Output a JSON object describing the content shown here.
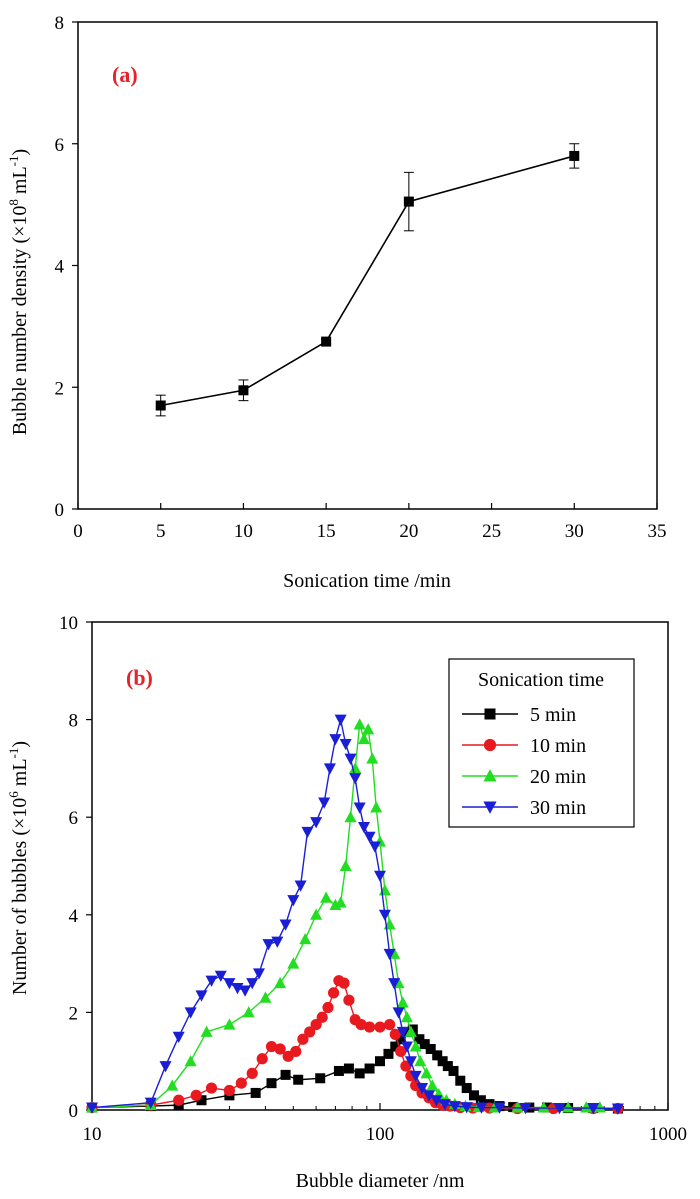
{
  "chart_data": [
    {
      "type": "line",
      "panel_label": "(a)",
      "panel_label_color": "#e8212a",
      "xlabel": "Sonication time  /min",
      "ylabel_main": "Bubble number density (×10",
      "ylabel_exp": "8",
      "ylabel_unit": " mL",
      "ylabel_unit_exp": "-1",
      "ylabel_close": ")",
      "xlim": [
        0,
        35
      ],
      "ylim": [
        0,
        8
      ],
      "xticks": [
        0,
        5,
        10,
        15,
        20,
        25,
        30,
        35
      ],
      "yticks": [
        0,
        2,
        4,
        6,
        8
      ],
      "series": [
        {
          "name": "Bubble number density",
          "color": "#000000",
          "marker": "square",
          "x": [
            5,
            10,
            15,
            20,
            30
          ],
          "y": [
            1.7,
            1.95,
            2.75,
            5.05,
            5.8
          ],
          "err": [
            0.17,
            0.17,
            0.04,
            0.48,
            0.2
          ]
        }
      ]
    },
    {
      "type": "line",
      "panel_label": "(b)",
      "panel_label_color": "#e8212a",
      "xscale": "log",
      "xlabel": "Bubble diameter /nm",
      "ylabel_main": "Number of bubbles (×10",
      "ylabel_exp": "6",
      "ylabel_unit": " mL",
      "ylabel_unit_exp": "-1",
      "ylabel_close": ")",
      "xlim": [
        10,
        1000
      ],
      "ylim": [
        0,
        10
      ],
      "xticks": [
        10,
        100,
        1000
      ],
      "yticks": [
        0,
        2,
        4,
        6,
        8,
        10
      ],
      "legend_title": "Sonication time",
      "legend_position": "top-right",
      "series": [
        {
          "name": "5 min",
          "color": "#000000",
          "marker": "square",
          "x": [
            10,
            16,
            20,
            24,
            30,
            37,
            42,
            47,
            52,
            62,
            72,
            78,
            85,
            92,
            100,
            107,
            113,
            118,
            124,
            130,
            137,
            143,
            150,
            158,
            165,
            172,
            180,
            190,
            200,
            212,
            224,
            240,
            260,
            290,
            330,
            380,
            450,
            550,
            670
          ],
          "y": [
            0.05,
            0.08,
            0.1,
            0.2,
            0.3,
            0.35,
            0.55,
            0.72,
            0.62,
            0.65,
            0.8,
            0.85,
            0.75,
            0.85,
            1.0,
            1.15,
            1.3,
            1.45,
            1.6,
            1.65,
            1.45,
            1.35,
            1.25,
            1.12,
            1.0,
            0.9,
            0.8,
            0.6,
            0.45,
            0.3,
            0.2,
            0.12,
            0.08,
            0.06,
            0.05,
            0.05,
            0.04,
            0.04,
            0.03
          ]
        },
        {
          "name": "10 min",
          "color": "#e8191f",
          "marker": "circle",
          "x": [
            10,
            16,
            20,
            23,
            26,
            30,
            33,
            36,
            39,
            42,
            45,
            48,
            51,
            54,
            57,
            60,
            63,
            66,
            69,
            72,
            75,
            78,
            82,
            86,
            92,
            100,
            108,
            113,
            118,
            123,
            128,
            133,
            140,
            148,
            156,
            165,
            175,
            190,
            210,
            240,
            300,
            400,
            550,
            670
          ],
          "y": [
            0.05,
            0.1,
            0.2,
            0.3,
            0.45,
            0.4,
            0.55,
            0.75,
            1.05,
            1.3,
            1.25,
            1.1,
            1.2,
            1.45,
            1.6,
            1.75,
            1.9,
            2.1,
            2.4,
            2.65,
            2.6,
            2.25,
            1.85,
            1.75,
            1.7,
            1.7,
            1.75,
            1.55,
            1.2,
            0.9,
            0.7,
            0.5,
            0.35,
            0.25,
            0.15,
            0.1,
            0.08,
            0.05,
            0.04,
            0.04,
            0.03,
            0.03,
            0.03,
            0.03
          ]
        },
        {
          "name": "20 min",
          "color": "#22dd22",
          "marker": "triangle-up",
          "x": [
            10,
            16,
            19,
            22,
            25,
            30,
            35,
            40,
            45,
            50,
            55,
            60,
            65,
            70,
            73,
            76,
            79,
            82,
            85,
            88,
            91,
            94,
            97,
            100,
            104,
            108,
            112,
            116,
            120,
            124,
            128,
            133,
            138,
            145,
            152,
            160,
            170,
            182,
            198,
            220,
            250,
            300,
            370,
            450,
            520,
            580
          ],
          "y": [
            0.05,
            0.1,
            0.5,
            1.0,
            1.6,
            1.75,
            2.0,
            2.3,
            2.6,
            3.0,
            3.5,
            4.0,
            4.35,
            4.2,
            4.25,
            5.0,
            6.0,
            7.0,
            7.9,
            7.6,
            7.8,
            7.2,
            6.2,
            5.5,
            4.5,
            3.8,
            3.2,
            2.6,
            2.2,
            1.9,
            1.6,
            1.3,
            1.0,
            0.75,
            0.5,
            0.32,
            0.2,
            0.12,
            0.08,
            0.06,
            0.05,
            0.05,
            0.05,
            0.05,
            0.05,
            0.05
          ]
        },
        {
          "name": "30 min",
          "color": "#1a1fd6",
          "marker": "triangle-down",
          "x": [
            10,
            16,
            18,
            20,
            22,
            24,
            26,
            28,
            30,
            32,
            34,
            36,
            38,
            41,
            44,
            47,
            50,
            53,
            56,
            60,
            64,
            67,
            70,
            73,
            76,
            79,
            82,
            85,
            88,
            92,
            96,
            100,
            104,
            108,
            112,
            116,
            120,
            124,
            128,
            133,
            140,
            148,
            157,
            168,
            182,
            200,
            225,
            260,
            320,
            420,
            550,
            670
          ],
          "y": [
            0.05,
            0.15,
            0.9,
            1.5,
            2.0,
            2.35,
            2.65,
            2.75,
            2.6,
            2.5,
            2.45,
            2.6,
            2.8,
            3.4,
            3.45,
            3.8,
            4.3,
            4.6,
            5.7,
            5.9,
            6.3,
            7.0,
            7.6,
            8.0,
            7.5,
            7.2,
            6.8,
            6.2,
            5.8,
            5.6,
            5.4,
            4.8,
            4.0,
            3.2,
            2.6,
            2.0,
            1.6,
            1.3,
            1.0,
            0.7,
            0.45,
            0.3,
            0.2,
            0.12,
            0.08,
            0.06,
            0.05,
            0.05,
            0.04,
            0.04,
            0.04,
            0.03
          ]
        }
      ]
    }
  ]
}
